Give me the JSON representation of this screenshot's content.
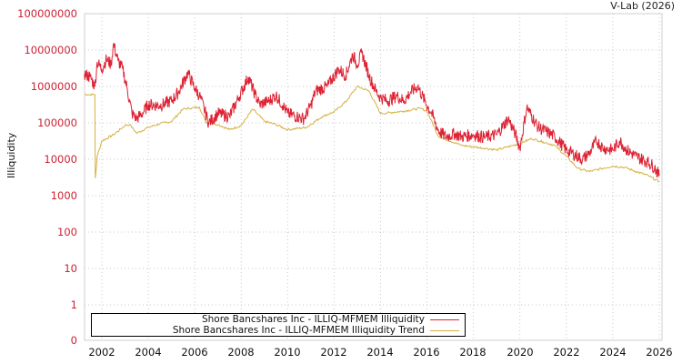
{
  "credit": "V-Lab (2026)",
  "colors": {
    "illiquidity": "#dd2233",
    "trend": "#d4b040",
    "grid": "#c8c8c8",
    "ytick": "#cc2233"
  },
  "legend": {
    "items": [
      {
        "label": "Shore Bancshares Inc - ILLIQ-MFMEM Illiquidity",
        "color": "#dd2233"
      },
      {
        "label": "Shore Bancshares Inc - ILLIQ-MFMEM Illiquidity Trend",
        "color": "#d4b040"
      }
    ]
  },
  "chart_data": {
    "type": "line",
    "title": "",
    "xlabel": "",
    "ylabel": "Illiquidity",
    "yscale": "log",
    "ylim": [
      0,
      100000000
    ],
    "xlim": [
      2001.25,
      2026.1
    ],
    "grid": true,
    "legend_position": "bottom-left inside",
    "y_ticks": [
      "100000000",
      "10000000",
      "1000000",
      "100000",
      "10000",
      "1000",
      "100",
      "10",
      "1",
      "0"
    ],
    "x_ticks": [
      "2002",
      "2004",
      "2006",
      "2008",
      "2010",
      "2012",
      "2014",
      "2016",
      "2018",
      "2020",
      "2022",
      "2024",
      "2026"
    ],
    "series": [
      {
        "name": "Shore Bancshares Inc - ILLIQ-MFMEM Illiquidity",
        "color": "#dd2233",
        "points": [
          [
            2001.25,
            2200000
          ],
          [
            2001.5,
            1800000
          ],
          [
            2001.7,
            1000000
          ],
          [
            2001.8,
            4700000
          ],
          [
            2002.0,
            3000000
          ],
          [
            2002.2,
            5600000
          ],
          [
            2002.4,
            4000000
          ],
          [
            2002.5,
            15000000
          ],
          [
            2002.7,
            5000000
          ],
          [
            2002.9,
            3000000
          ],
          [
            2003.1,
            800000
          ],
          [
            2003.3,
            180000
          ],
          [
            2003.5,
            130000
          ],
          [
            2003.8,
            200000
          ],
          [
            2004.0,
            320000
          ],
          [
            2004.5,
            300000
          ],
          [
            2005.0,
            400000
          ],
          [
            2005.3,
            700000
          ],
          [
            2005.7,
            2400000
          ],
          [
            2006.0,
            900000
          ],
          [
            2006.2,
            570000
          ],
          [
            2006.4,
            250000
          ],
          [
            2006.6,
            100000
          ],
          [
            2007.0,
            180000
          ],
          [
            2007.5,
            150000
          ],
          [
            2007.9,
            500000
          ],
          [
            2008.3,
            1800000
          ],
          [
            2008.6,
            600000
          ],
          [
            2008.8,
            320000
          ],
          [
            2009.2,
            400000
          ],
          [
            2009.5,
            570000
          ],
          [
            2009.8,
            300000
          ],
          [
            2010.0,
            180000
          ],
          [
            2010.4,
            150000
          ],
          [
            2010.7,
            130000
          ],
          [
            2011.0,
            300000
          ],
          [
            2011.2,
            750000
          ],
          [
            2011.7,
            1000000
          ],
          [
            2012.2,
            3000000
          ],
          [
            2012.5,
            2000000
          ],
          [
            2012.8,
            7500000
          ],
          [
            2013.0,
            4000000
          ],
          [
            2013.2,
            8400000
          ],
          [
            2013.5,
            2000000
          ],
          [
            2013.8,
            750000
          ],
          [
            2014.0,
            500000
          ],
          [
            2014.3,
            400000
          ],
          [
            2014.7,
            550000
          ],
          [
            2015.0,
            400000
          ],
          [
            2015.3,
            700000
          ],
          [
            2015.6,
            1000000
          ],
          [
            2015.9,
            400000
          ],
          [
            2016.2,
            180000
          ],
          [
            2016.5,
            60000
          ],
          [
            2016.8,
            42000
          ],
          [
            2017.2,
            50000
          ],
          [
            2017.5,
            42000
          ],
          [
            2018.0,
            47000
          ],
          [
            2018.5,
            40000
          ],
          [
            2019.0,
            47000
          ],
          [
            2019.5,
            130000
          ],
          [
            2019.8,
            50000
          ],
          [
            2020.0,
            20000
          ],
          [
            2020.3,
            270000
          ],
          [
            2020.6,
            120000
          ],
          [
            2020.8,
            75000
          ],
          [
            2021.2,
            55000
          ],
          [
            2021.5,
            42000
          ],
          [
            2022.0,
            18000
          ],
          [
            2022.3,
            14000
          ],
          [
            2022.7,
            10000
          ],
          [
            2023.0,
            15000
          ],
          [
            2023.3,
            32000
          ],
          [
            2023.6,
            20000
          ],
          [
            2024.0,
            18000
          ],
          [
            2024.3,
            32000
          ],
          [
            2024.6,
            18000
          ],
          [
            2025.0,
            12000
          ],
          [
            2025.5,
            8500
          ],
          [
            2025.8,
            6000
          ],
          [
            2026.0,
            3500
          ]
        ]
      },
      {
        "name": "Shore Bancshares Inc - ILLIQ-MFMEM Illiquidity Trend",
        "color": "#d4b040",
        "points": [
          [
            2001.25,
            600000
          ],
          [
            2001.7,
            600000
          ],
          [
            2001.72,
            3000
          ],
          [
            2001.8,
            12000
          ],
          [
            2002.0,
            32000
          ],
          [
            2002.5,
            47000
          ],
          [
            2003.0,
            85000
          ],
          [
            2003.2,
            90000
          ],
          [
            2003.5,
            52000
          ],
          [
            2004.0,
            75000
          ],
          [
            2004.5,
            95000
          ],
          [
            2005.0,
            110000
          ],
          [
            2005.5,
            240000
          ],
          [
            2006.2,
            270000
          ],
          [
            2006.5,
            100000
          ],
          [
            2007.0,
            90000
          ],
          [
            2007.5,
            65000
          ],
          [
            2008.0,
            85000
          ],
          [
            2008.5,
            240000
          ],
          [
            2009.0,
            110000
          ],
          [
            2009.5,
            90000
          ],
          [
            2010.0,
            65000
          ],
          [
            2010.8,
            75000
          ],
          [
            2011.5,
            150000
          ],
          [
            2012.0,
            200000
          ],
          [
            2012.5,
            380000
          ],
          [
            2013.0,
            1000000
          ],
          [
            2013.5,
            750000
          ],
          [
            2014.0,
            180000
          ],
          [
            2015.0,
            210000
          ],
          [
            2015.7,
            250000
          ],
          [
            2016.0,
            210000
          ],
          [
            2016.5,
            42000
          ],
          [
            2017.5,
            24000
          ],
          [
            2018.5,
            20000
          ],
          [
            2019.0,
            18000
          ],
          [
            2020.0,
            27000
          ],
          [
            2020.5,
            37000
          ],
          [
            2021.0,
            30000
          ],
          [
            2021.5,
            24000
          ],
          [
            2022.0,
            12000
          ],
          [
            2022.5,
            5600
          ],
          [
            2023.0,
            4600
          ],
          [
            2023.5,
            5500
          ],
          [
            2024.0,
            6500
          ],
          [
            2024.5,
            6000
          ],
          [
            2025.0,
            4600
          ],
          [
            2025.5,
            3600
          ],
          [
            2026.0,
            2400
          ]
        ]
      }
    ]
  }
}
